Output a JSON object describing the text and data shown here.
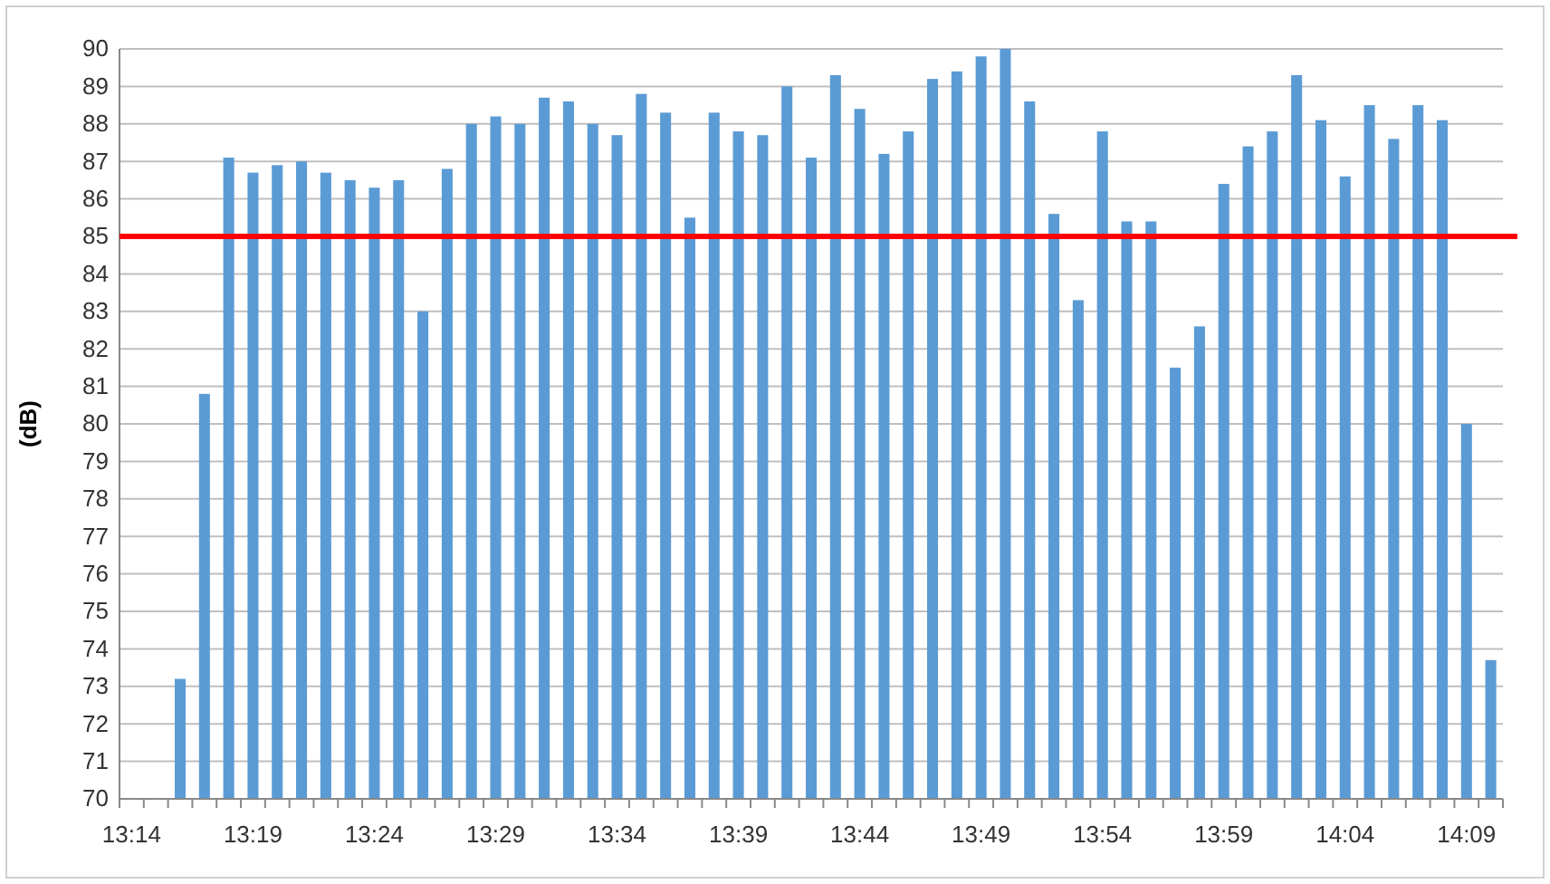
{
  "chart_data": {
    "type": "bar",
    "ylabel": "(dB)",
    "categories": [
      "13:14",
      null,
      null,
      null,
      null,
      "13:19",
      null,
      null,
      null,
      null,
      "13:24",
      null,
      null,
      null,
      null,
      "13:29",
      null,
      null,
      null,
      null,
      "13:34",
      null,
      null,
      null,
      null,
      "13:39",
      null,
      null,
      null,
      null,
      "13:44",
      null,
      null,
      null,
      null,
      "13:49",
      null,
      null,
      null,
      null,
      "13:54",
      null,
      null,
      null,
      null,
      "13:59",
      null,
      null,
      null,
      null,
      "14:04",
      null,
      null,
      null,
      null,
      "14:09",
      null
    ],
    "values": [
      null,
      null,
      73.2,
      80.8,
      87.1,
      86.7,
      86.9,
      87.0,
      86.7,
      86.5,
      86.3,
      86.5,
      83.0,
      86.8,
      88.0,
      88.2,
      88.0,
      88.7,
      88.6,
      88.0,
      87.7,
      88.8,
      88.3,
      85.5,
      88.3,
      87.8,
      87.7,
      89.0,
      87.1,
      89.3,
      88.4,
      87.2,
      87.8,
      89.2,
      89.4,
      89.8,
      90.0,
      88.6,
      85.6,
      83.3,
      87.8,
      85.4,
      85.4,
      81.5,
      82.6,
      86.4,
      87.4,
      87.8,
      89.3,
      88.1,
      86.6,
      88.5,
      87.6,
      88.5,
      88.1,
      80.0,
      73.7
    ],
    "color": "#5b9bd5",
    "ylim": [
      70,
      90
    ],
    "yticks": [
      70,
      71,
      72,
      73,
      74,
      75,
      76,
      77,
      78,
      79,
      80,
      81,
      82,
      83,
      84,
      85,
      86,
      87,
      88,
      89,
      90
    ],
    "grid": "y",
    "ref_lines": [
      {
        "axis": "y",
        "value": 85,
        "color": "#ff0000"
      }
    ]
  }
}
